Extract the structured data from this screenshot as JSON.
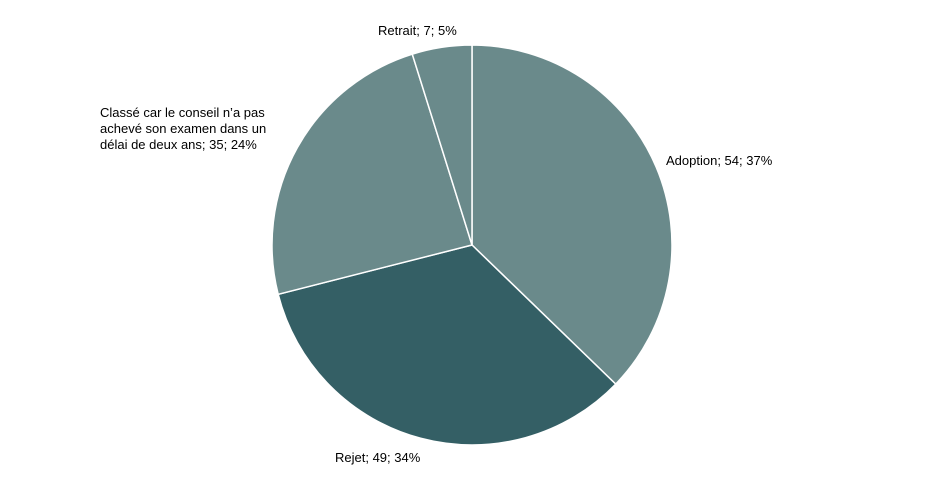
{
  "chart_data": {
    "type": "pie",
    "title": "",
    "slices": [
      {
        "label": "Adoption",
        "value": 54,
        "percent": "37%",
        "display": "Adoption; 54; 37%",
        "color": "#6a8a8b"
      },
      {
        "label": "Rejet",
        "value": 49,
        "percent": "34%",
        "display": "Rejet; 49; 34%",
        "color": "#345f65"
      },
      {
        "label": "Classé car le conseil n’a pas achevé son examen dans un délai de deux ans",
        "value": 35,
        "percent": "24%",
        "display_lines": [
          "Classé car le conseil n’a pas",
          "achevé son examen  dans un",
          "délai de deux ans; 35; 24%"
        ],
        "color": "#6a8a8b"
      },
      {
        "label": "Retrait",
        "value": 7,
        "percent": "5%",
        "display": "Retrait; 7; 5%",
        "color": "#6a8a8b"
      }
    ],
    "start_angle": "12 o'clock",
    "direction": "clockwise",
    "slice_border_color": "#ffffff",
    "legend": "none"
  }
}
